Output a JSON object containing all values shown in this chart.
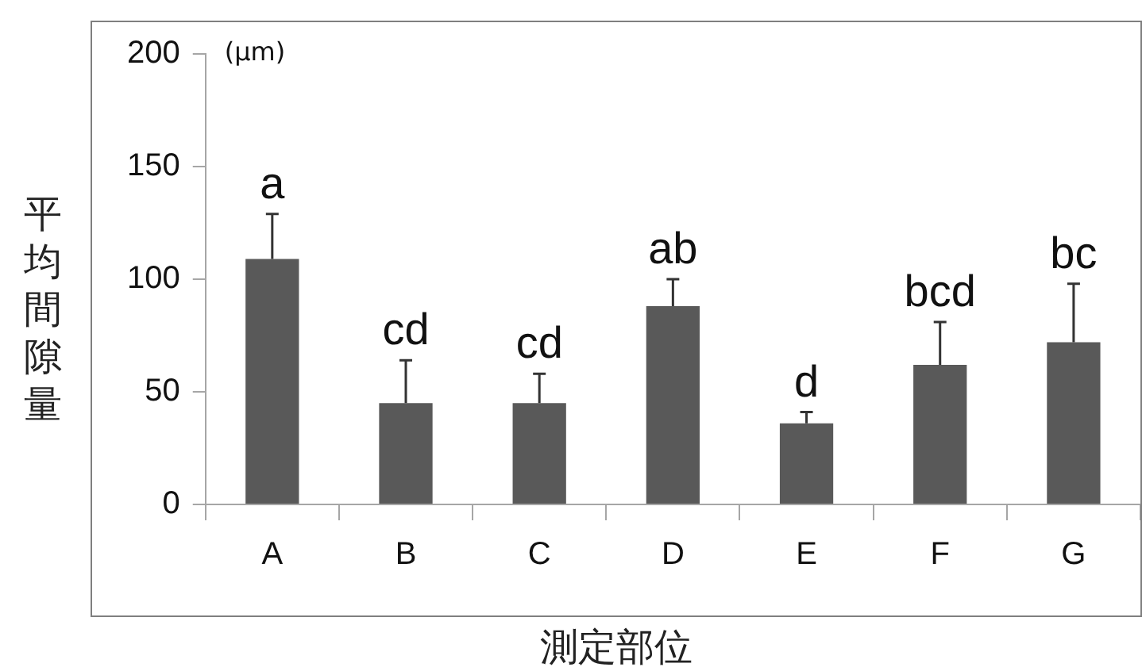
{
  "chart_data": {
    "type": "bar",
    "xlabel": "測定部位",
    "ylabel": "平均間隙量",
    "categories": [
      "A",
      "B",
      "C",
      "D",
      "E",
      "F",
      "G"
    ],
    "values": [
      109,
      45,
      45,
      88,
      36,
      62,
      72
    ],
    "errors": [
      [
        109,
        129
      ],
      [
        45,
        64
      ],
      [
        45,
        58
      ],
      [
        88,
        100
      ],
      [
        36,
        41
      ],
      [
        62,
        81
      ],
      [
        72,
        98
      ]
    ],
    "color": "#595959",
    "ylim": [
      0,
      200
    ],
    "yticks": [
      0,
      50,
      100,
      150,
      200
    ],
    "grid": false,
    "legend": false,
    "annotations": [
      "(μm)",
      {
        "text": "a",
        "x": "A",
        "y": 129
      },
      {
        "text": "cd",
        "x": "B",
        "y": 64
      },
      {
        "text": "cd",
        "x": "C",
        "y": 58
      },
      {
        "text": "ab",
        "x": "D",
        "y": 100
      },
      {
        "text": "d",
        "x": "E",
        "y": 41
      },
      {
        "text": "bcd",
        "x": "F",
        "y": 81
      },
      {
        "text": "bc",
        "x": "G",
        "y": 98
      }
    ]
  }
}
